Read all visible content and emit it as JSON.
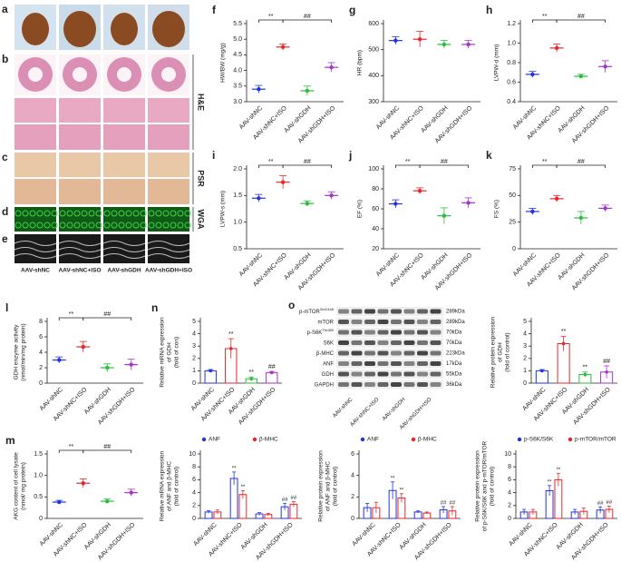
{
  "figure": {
    "labels": [
      "a",
      "b",
      "c",
      "d",
      "e"
    ],
    "stains": [
      "H&E",
      "PSR",
      "WGA"
    ],
    "groups": [
      "AAV-shNC",
      "AAV-shNC+ISO",
      "AAV-shGDH",
      "AAV-shGDH+ISO"
    ]
  },
  "blot": {
    "label": "o",
    "proteins": [
      {
        "name": "p-mTOR",
        "sup": "Ser2448"
      },
      {
        "name": "mTOR"
      },
      {
        "name": "p-S6K",
        "sup": "Thr389"
      },
      {
        "name": "S6K"
      },
      {
        "name": "β-MHC"
      },
      {
        "name": "ANF"
      },
      {
        "name": "GDH"
      },
      {
        "name": "GAPDH"
      }
    ],
    "sizes": [
      "289kDa",
      "289kDa",
      "70kDa",
      "70kDa",
      "223kDa",
      "17kDa",
      "55kDa",
      "36kDa"
    ],
    "groups": [
      "AAV-shNC",
      "AAV-shNC+ISO",
      "AAV-shGDH",
      "AAV-shGDH+ISO"
    ]
  },
  "chart_data": [
    {
      "type": "dot",
      "label": "f",
      "ylabel": [
        "HW/BW (mg/g)"
      ],
      "categories": [
        "AAV-shNC",
        "AAV-shNC+ISO",
        "AAV-shGDH",
        "AAV-shGDH+ISO"
      ],
      "values": [
        3.4,
        4.75,
        3.35,
        4.1
      ],
      "errors": [
        0.12,
        0.1,
        0.15,
        0.15
      ],
      "colors": [
        "#2233dd",
        "#e8262a",
        "#2bbd3b",
        "#a535c9"
      ],
      "ylim": [
        3.0,
        5.5
      ],
      "yticks": [
        {
          "value": 3.0,
          "label": "3.0"
        },
        3.5,
        {
          "value": 4.0,
          "label": "4.0"
        },
        4.5,
        {
          "value": 5.0,
          "label": "5.0"
        },
        5.5
      ],
      "brackets": [
        "**",
        "##"
      ]
    },
    {
      "type": "dot",
      "label": "g",
      "ylabel": [
        "HR (bpm)"
      ],
      "categories": [
        "AAV-shNC",
        "AAV-shNC+ISO",
        "AAV-shGDH",
        "AAV-shGDH+ISO"
      ],
      "values": [
        535,
        540,
        520,
        520
      ],
      "errors": [
        15,
        30,
        15,
        15
      ],
      "colors": [
        "#2233dd",
        "#e8262a",
        "#2bbd3b",
        "#a535c9"
      ],
      "ylim": [
        300,
        600
      ],
      "yticks": [
        300,
        400,
        500,
        600
      ]
    },
    {
      "type": "dot",
      "label": "h",
      "ylabel": [
        "LVPW-d (mm)"
      ],
      "categories": [
        "AAV-shNC",
        "AAV-shNC+ISO",
        "AAV-shGDH",
        "AAV-shGDH+ISO"
      ],
      "values": [
        0.68,
        0.95,
        0.66,
        0.76
      ],
      "errors": [
        0.03,
        0.04,
        0.02,
        0.06
      ],
      "colors": [
        "#2233dd",
        "#e8262a",
        "#2bbd3b",
        "#a535c9"
      ],
      "ylim": [
        0.4,
        1.2
      ],
      "yticks": [
        0.4,
        0.6,
        0.8,
        {
          "value": 1.0,
          "label": "1.0"
        },
        1.2
      ],
      "brackets": [
        "**",
        "##"
      ]
    },
    {
      "type": "dot",
      "label": "i",
      "ylabel": [
        "LVPW-s (mm)"
      ],
      "categories": [
        "AAV-shNC",
        "AAV-shNC+ISO",
        "AAV-shGDH",
        "AAV-shGDH+ISO"
      ],
      "values": [
        1.45,
        1.75,
        1.35,
        1.5
      ],
      "errors": [
        0.07,
        0.12,
        0.05,
        0.07
      ],
      "colors": [
        "#2233dd",
        "#e8262a",
        "#2bbd3b",
        "#a535c9"
      ],
      "ylim": [
        0.5,
        2.0
      ],
      "yticks": [
        0.5,
        {
          "value": 1.0,
          "label": "1.0"
        },
        1.5,
        {
          "value": 2.0,
          "label": "2.0"
        }
      ],
      "brackets": [
        "**",
        "##"
      ]
    },
    {
      "type": "dot",
      "label": "j",
      "ylabel": [
        "EF (%)"
      ],
      "categories": [
        "AAV-shNC",
        "AAV-shNC+ISO",
        "AAV-shGDH",
        "AAV-shGDH+ISO"
      ],
      "values": [
        65,
        78,
        53,
        66
      ],
      "errors": [
        4,
        3,
        8,
        5
      ],
      "colors": [
        "#2233dd",
        "#e8262a",
        "#2bbd3b",
        "#a535c9"
      ],
      "ylim": [
        20,
        100
      ],
      "yticks": [
        20,
        40,
        60,
        80,
        100
      ],
      "brackets": [
        "**",
        "##"
      ]
    },
    {
      "type": "dot",
      "label": "k",
      "ylabel": [
        "FS (%)"
      ],
      "categories": [
        "AAV-shNC",
        "AAV-shNC+ISO",
        "AAV-shGDH",
        "AAV-shGDH+ISO"
      ],
      "values": [
        35,
        47,
        29,
        38
      ],
      "errors": [
        3,
        3,
        6,
        3
      ],
      "colors": [
        "#2233dd",
        "#e8262a",
        "#2bbd3b",
        "#a535c9"
      ],
      "ylim": [
        0,
        75
      ],
      "yticks": [
        0,
        25,
        50,
        75
      ],
      "brackets": [
        "**",
        "##"
      ]
    },
    {
      "type": "dot",
      "label": "l",
      "ylabel": [
        "GDH enzyme activity",
        "(nmol/min/mg protein)"
      ],
      "categories": [
        "AAV-shNC",
        "AAV-shNC+ISO",
        "AAV-shGDH",
        "AAV-shGDH+ISO"
      ],
      "values": [
        3.0,
        4.7,
        2.0,
        2.4
      ],
      "errors": [
        0.4,
        0.7,
        0.5,
        0.7
      ],
      "colors": [
        "#2233dd",
        "#e8262a",
        "#2bbd3b",
        "#a535c9"
      ],
      "ylim": [
        0,
        8
      ],
      "yticks": [
        0,
        2,
        4,
        6,
        8
      ],
      "brackets": [
        "**",
        "##"
      ]
    },
    {
      "type": "bar",
      "label": "n",
      "ylabel": [
        "Relative mRNA expression",
        "of GDH",
        "(fold of con)"
      ],
      "categories": [
        "AAV-shNC",
        "AAV-shNC+ISO",
        "AAV-shGDH",
        "AAV-shGDH+ISO"
      ],
      "values": [
        1.0,
        2.8,
        0.35,
        0.85
      ],
      "errors": [
        0.1,
        0.8,
        0.15,
        0.1
      ],
      "colors": [
        "#2233dd",
        "#e8262a",
        "#2bbd3b",
        "#a535c9"
      ],
      "bar_labels": [
        null,
        "**",
        "**",
        "##"
      ],
      "ylim": [
        0,
        5
      ],
      "yticks": [
        0,
        1,
        2,
        3,
        4,
        5
      ]
    },
    {
      "type": "bar",
      "label": null,
      "ylabel": [
        "Relative protein expression",
        "of GDH",
        "(fold of control)"
      ],
      "categories": [
        "AAV-shNC",
        "AAV-shNC+ISO",
        "AAV-shGDH",
        "AAV-shGDH+ISO"
      ],
      "values": [
        1.0,
        3.2,
        0.7,
        0.9
      ],
      "errors": [
        0.1,
        0.6,
        0.2,
        0.5
      ],
      "colors": [
        "#2233dd",
        "#e8262a",
        "#2bbd3b",
        "#a535c9"
      ],
      "bar_labels": [
        null,
        "**",
        "**",
        "##"
      ],
      "ylim": [
        0,
        5
      ],
      "yticks": [
        0,
        1,
        2,
        3,
        4,
        5
      ]
    },
    {
      "type": "dot",
      "label": "m",
      "ylabel": [
        "AKG content of cell lysate",
        "(nmol/ mg protein)"
      ],
      "categories": [
        "AAV-shNC",
        "AAV-shNC+ISO",
        "AAV-shGDH",
        "AAV-shGDH+ISO"
      ],
      "values": [
        0.38,
        0.82,
        0.4,
        0.6
      ],
      "errors": [
        0.04,
        0.1,
        0.05,
        0.08
      ],
      "colors": [
        "#2233dd",
        "#e8262a",
        "#2bbd3b",
        "#a535c9"
      ],
      "ylim": [
        0,
        1.5
      ],
      "yticks": [
        0,
        0.5,
        {
          "value": 1.0,
          "label": "1.0"
        },
        1.5
      ],
      "brackets": [
        "**",
        "##"
      ]
    },
    {
      "type": "grouped",
      "label": null,
      "ylabel": [
        "Relative mRNA expression",
        "of ANF and β-MHC",
        "(fold of control)"
      ],
      "categories": [
        "AAV-shNC",
        "AAV-shNC+ISO",
        "AAV-shGDH",
        "AAV-shGDH+ISO"
      ],
      "series": [
        {
          "name": "ANF",
          "color": "#2233dd",
          "values": [
            1.0,
            6.2,
            0.7,
            1.8
          ],
          "errors": [
            0.2,
            1.0,
            0.2,
            0.5
          ],
          "labels": [
            null,
            "**",
            null,
            "##"
          ]
        },
        {
          "name": "β-MHC",
          "color": "#e8262a",
          "values": [
            1.0,
            3.7,
            0.6,
            2.2
          ],
          "errors": [
            0.3,
            0.6,
            0.2,
            0.4
          ],
          "labels": [
            null,
            "**",
            null,
            "##"
          ]
        }
      ],
      "ylim": [
        0,
        10
      ],
      "yticks": [
        0,
        2,
        4,
        6,
        8,
        10
      ]
    },
    {
      "type": "grouped",
      "label": null,
      "ylabel": [
        "Relative protein expression",
        "of ANF and β-MHC",
        "(fold of control)"
      ],
      "categories": [
        "AAV-shNC",
        "AAV-shNC+ISO",
        "AAV-shGDH",
        "AAV-shGDH+ISO"
      ],
      "series": [
        {
          "name": "ANF",
          "color": "#2233dd",
          "values": [
            1.0,
            2.6,
            0.6,
            0.8
          ],
          "errors": [
            0.4,
            0.8,
            0.1,
            0.3
          ],
          "labels": [
            null,
            "**",
            null,
            "##"
          ]
        },
        {
          "name": "β-MHC",
          "color": "#e8262a",
          "values": [
            1.0,
            1.9,
            0.5,
            0.7
          ],
          "errors": [
            0.5,
            0.4,
            0.1,
            0.4
          ],
          "labels": [
            null,
            "**",
            null,
            "##"
          ]
        }
      ],
      "ylim": [
        0,
        6
      ],
      "yticks": [
        0,
        2,
        4,
        6
      ]
    },
    {
      "type": "grouped",
      "label": null,
      "ylabel": [
        "Relative protein expression",
        "of p-S6K/S6K and p-mTOR/mTOR",
        "(fold of control)"
      ],
      "categories": [
        "AAV-shNC",
        "AAV-shNC+ISO",
        "AAV-shGDH",
        "AAV-shGDH+ISO"
      ],
      "series": [
        {
          "name": "p-S6K/S6K",
          "color": "#2233dd",
          "values": [
            1.0,
            4.3,
            1.0,
            1.3
          ],
          "errors": [
            0.4,
            0.8,
            0.4,
            0.5
          ],
          "labels": [
            null,
            "**",
            null,
            "##"
          ]
        },
        {
          "name": "p-mTOR/mTOR",
          "color": "#e8262a",
          "values": [
            1.0,
            6.0,
            1.1,
            1.4
          ],
          "errors": [
            0.4,
            1.0,
            0.5,
            0.5
          ],
          "labels": [
            null,
            "**",
            null,
            "##"
          ]
        }
      ],
      "ylim": [
        0,
        10
      ],
      "yticks": [
        0,
        2,
        4,
        6,
        8,
        10
      ]
    }
  ]
}
